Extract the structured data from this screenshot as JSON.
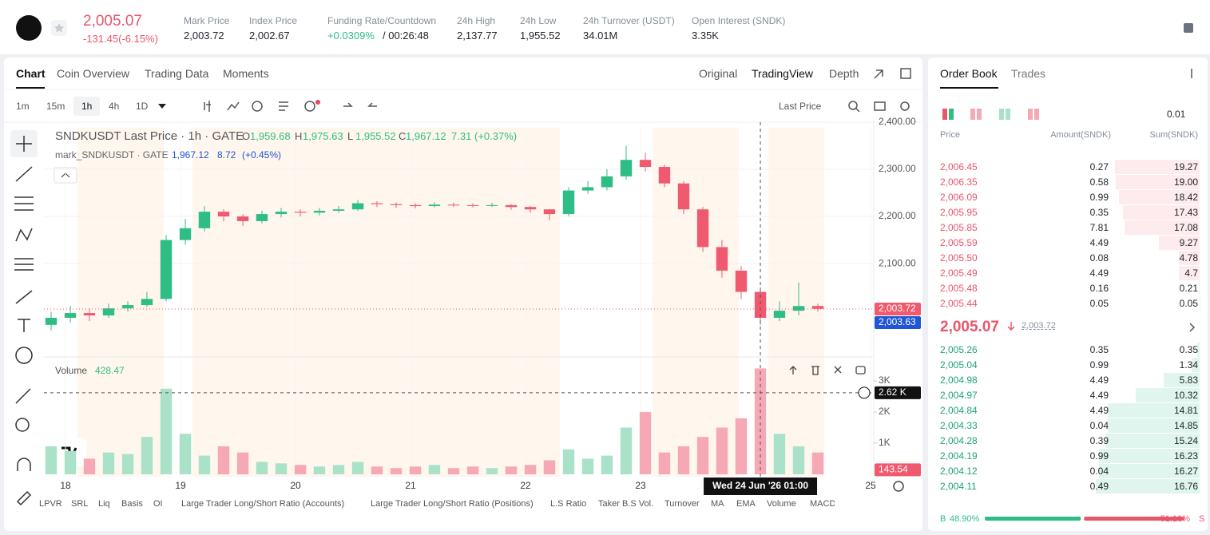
{
  "header": {
    "price": "2,005.07",
    "change": "-131.45(-6.15%)",
    "stats": [
      {
        "label": "Mark Price",
        "value": "2,003.72"
      },
      {
        "label": "Index Price",
        "value": "2,002.67"
      },
      {
        "label": "Funding Rate/Countdown",
        "value": "+0.0309%",
        "value2": "/ 00:26:48"
      },
      {
        "label": "24h High",
        "value": "2,137.77"
      },
      {
        "label": "24h Low",
        "value": "1,955.52"
      },
      {
        "label": "24h Turnover (USDT)",
        "value": "34.01M"
      },
      {
        "label": "Open Interest (SNDK)",
        "value": "3.35K"
      }
    ]
  },
  "chart_panel": {
    "tabs": [
      "Chart",
      "Coin Overview",
      "Trading Data",
      "Moments"
    ],
    "views": [
      "Original",
      "TradingView",
      "Depth"
    ],
    "intervals": [
      "1m",
      "15m",
      "1h",
      "4h",
      "1D"
    ],
    "price_source": "Last Price",
    "indicators": [
      "LPVR",
      "SRL",
      "Liq",
      "Basis",
      "OI",
      "Large Trader Long/Short Ratio (Accounts)",
      "Large Trader Long/Short Ratio (Positions)",
      "L.S Ratio",
      "Taker B.S Vol.",
      "Turnover",
      "MA",
      "EMA",
      "Volume",
      "MACD"
    ]
  },
  "chart_data": {
    "type": "candlestick",
    "title": "SNDKUSDT Last Price · 1h · GATE",
    "legend": {
      "o_label": "O",
      "o": {
        "value": 1959.68,
        "label": "1,959.68"
      },
      "h_label": "H",
      "h": {
        "value": 1975.63,
        "label": "1,975.63"
      },
      "l_label": "L",
      "l": {
        "value": 1955.52,
        "label": "1,955.52"
      },
      "c_label": "C",
      "c": {
        "value": 1967.12,
        "label": "1,967.12"
      },
      "change": 7.31,
      "change_pct": {
        "value": 0.37,
        "label": "(+0.37%)"
      },
      "mark_title": "mark_SNDKUSDT · GATE",
      "mark_value": {
        "value": 1967.12,
        "label": "1,967.12"
      },
      "mark_change": 8.72,
      "mark_change_pct": {
        "value": 0.45,
        "label": "(+0.45%)"
      },
      "volume_title": "Volume",
      "volume_value": 428.47
    },
    "x": [
      17.875,
      18.042,
      18.208,
      18.375,
      18.542,
      18.708,
      18.875,
      19.042,
      19.208,
      19.375,
      19.542,
      19.708,
      19.875,
      20.042,
      20.208,
      20.375,
      20.542,
      20.708,
      20.875,
      21.042,
      21.208,
      21.375,
      21.542,
      21.708,
      21.875,
      22.042,
      22.208,
      22.375,
      22.542,
      22.708,
      22.875,
      23.042,
      23.208,
      23.375,
      23.542,
      23.708,
      23.875,
      24.042,
      24.208,
      24.375,
      24.542
    ],
    "open": [
      1970,
      1985,
      1995,
      1990,
      2005,
      2012,
      2025,
      2150,
      2175,
      2210,
      2200,
      2190,
      2205,
      2210,
      2208,
      2212,
      2215,
      2228,
      2226,
      2224,
      2222,
      2225,
      2224,
      2223,
      2224,
      2220,
      2215,
      2205,
      2255,
      2262,
      2285,
      2320,
      2305,
      2270,
      2215,
      2135,
      2085,
      2040,
      1985,
      2000,
      2010
    ],
    "high": [
      1998,
      2010,
      2005,
      2015,
      2020,
      2040,
      2160,
      2195,
      2222,
      2215,
      2205,
      2212,
      2218,
      2215,
      2218,
      2222,
      2235,
      2232,
      2230,
      2228,
      2230,
      2229,
      2228,
      2229,
      2226,
      2222,
      2215,
      2262,
      2275,
      2300,
      2350,
      2335,
      2310,
      2275,
      2220,
      2150,
      2095,
      2050,
      2020,
      2060,
      2015
    ],
    "low": [
      1958,
      1975,
      1978,
      1985,
      1998,
      2008,
      2020,
      2140,
      2168,
      2190,
      2180,
      2185,
      2198,
      2200,
      2202,
      2208,
      2212,
      2220,
      2218,
      2217,
      2219,
      2220,
      2219,
      2220,
      2214,
      2208,
      2192,
      2200,
      2248,
      2255,
      2278,
      2295,
      2262,
      2205,
      2125,
      2070,
      2025,
      1970,
      1978,
      1990,
      1998
    ],
    "close": [
      1985,
      1995,
      1990,
      2005,
      2012,
      2025,
      2150,
      2175,
      2210,
      2200,
      2190,
      2205,
      2210,
      2208,
      2212,
      2215,
      2228,
      2226,
      2224,
      2222,
      2225,
      2224,
      2223,
      2224,
      2220,
      2215,
      2205,
      2255,
      2262,
      2285,
      2320,
      2305,
      2270,
      2215,
      2135,
      2085,
      2040,
      1985,
      2000,
      2010,
      2004
    ],
    "volume": [
      900,
      750,
      500,
      700,
      650,
      1200,
      2750,
      1300,
      600,
      900,
      700,
      400,
      350,
      300,
      250,
      300,
      400,
      250,
      200,
      250,
      300,
      200,
      250,
      200,
      250,
      300,
      450,
      800,
      500,
      600,
      1500,
      2000,
      700,
      900,
      1200,
      1500,
      1800,
      3400,
      1300,
      900,
      700
    ],
    "xlim": [
      17.81,
      25.03
    ],
    "xticks": [
      18,
      19,
      20,
      21,
      22,
      23,
      25
    ],
    "ylim": [
      1902,
      2405
    ],
    "yticks": [
      {
        "value": 2100,
        "label": "2,100.00"
      },
      {
        "value": 2200,
        "label": "2,200.00"
      },
      {
        "value": 2300,
        "label": "2,300.00"
      },
      {
        "value": 2400,
        "label": "2,400.00"
      }
    ],
    "volume_ylim": [
      0,
      3744
    ],
    "volume_yticks": [
      {
        "value": 1000,
        "label": "1K"
      },
      {
        "value": 2000,
        "label": "2K"
      },
      {
        "value": 3000,
        "label": "3K"
      }
    ],
    "last_price": {
      "value": 2003.72,
      "label": "2,003.72"
    },
    "mark_price": {
      "value": 2003.63,
      "label": "2,003.63"
    },
    "crosshair_volume": {
      "value": 2620,
      "label": "2.62 K"
    },
    "crosshair_x": 24.042,
    "crosshair_time": "Wed 24 Jun '26  01:00",
    "last_volume": 143.54,
    "up_color": "#2ebd85",
    "down_color": "#ef5a6f",
    "up_volume_color": "#a9e2c8",
    "down_volume_color": "#f6a9b4",
    "mark_color": "#2056d6",
    "grid": true
  },
  "order_book": {
    "tabs": [
      "Order Book",
      "Trades"
    ],
    "precision": "0.01",
    "columns": [
      "Price",
      "Amount(SNDK)",
      "Sum(SNDK)"
    ],
    "asks": [
      [
        "2,006.45",
        0.27,
        19.27
      ],
      [
        "2,006.35",
        0.58,
        {
          "value": 19,
          "label": "19.00"
        }
      ],
      [
        "2,006.09",
        0.99,
        18.42
      ],
      [
        "2,005.95",
        0.35,
        17.43
      ],
      [
        "2,005.85",
        7.81,
        17.08
      ],
      [
        "2,005.59",
        4.49,
        9.27
      ],
      [
        "2,005.50",
        0.08,
        4.78
      ],
      [
        "2,005.49",
        4.49,
        4.7
      ],
      [
        "2,005.48",
        0.16,
        0.21
      ],
      [
        "2,005.44",
        0.05,
        0.05
      ]
    ],
    "mid_price": "2,005.07",
    "mid_mark": "2,003.72",
    "bids": [
      [
        "2,005.26",
        0.35,
        0.35
      ],
      [
        "2,005.04",
        0.99,
        1.34
      ],
      [
        "2,004.98",
        4.49,
        5.83
      ],
      [
        "2,004.97",
        4.49,
        10.32
      ],
      [
        "2,004.84",
        4.49,
        14.81
      ],
      [
        "2,004.33",
        0.04,
        14.85
      ],
      [
        "2,004.28",
        0.39,
        15.24
      ],
      [
        "2,004.19",
        0.99,
        16.23
      ],
      [
        "2,004.12",
        0.04,
        16.27
      ],
      [
        "2,004.11",
        0.49,
        16.76
      ]
    ],
    "buy_letter": "B",
    "buy": {
      "value": 48.9,
      "label": "48.90%"
    },
    "sell": {
      "value": 51.1,
      "label": "51.10%"
    },
    "sell_letter": "S"
  }
}
